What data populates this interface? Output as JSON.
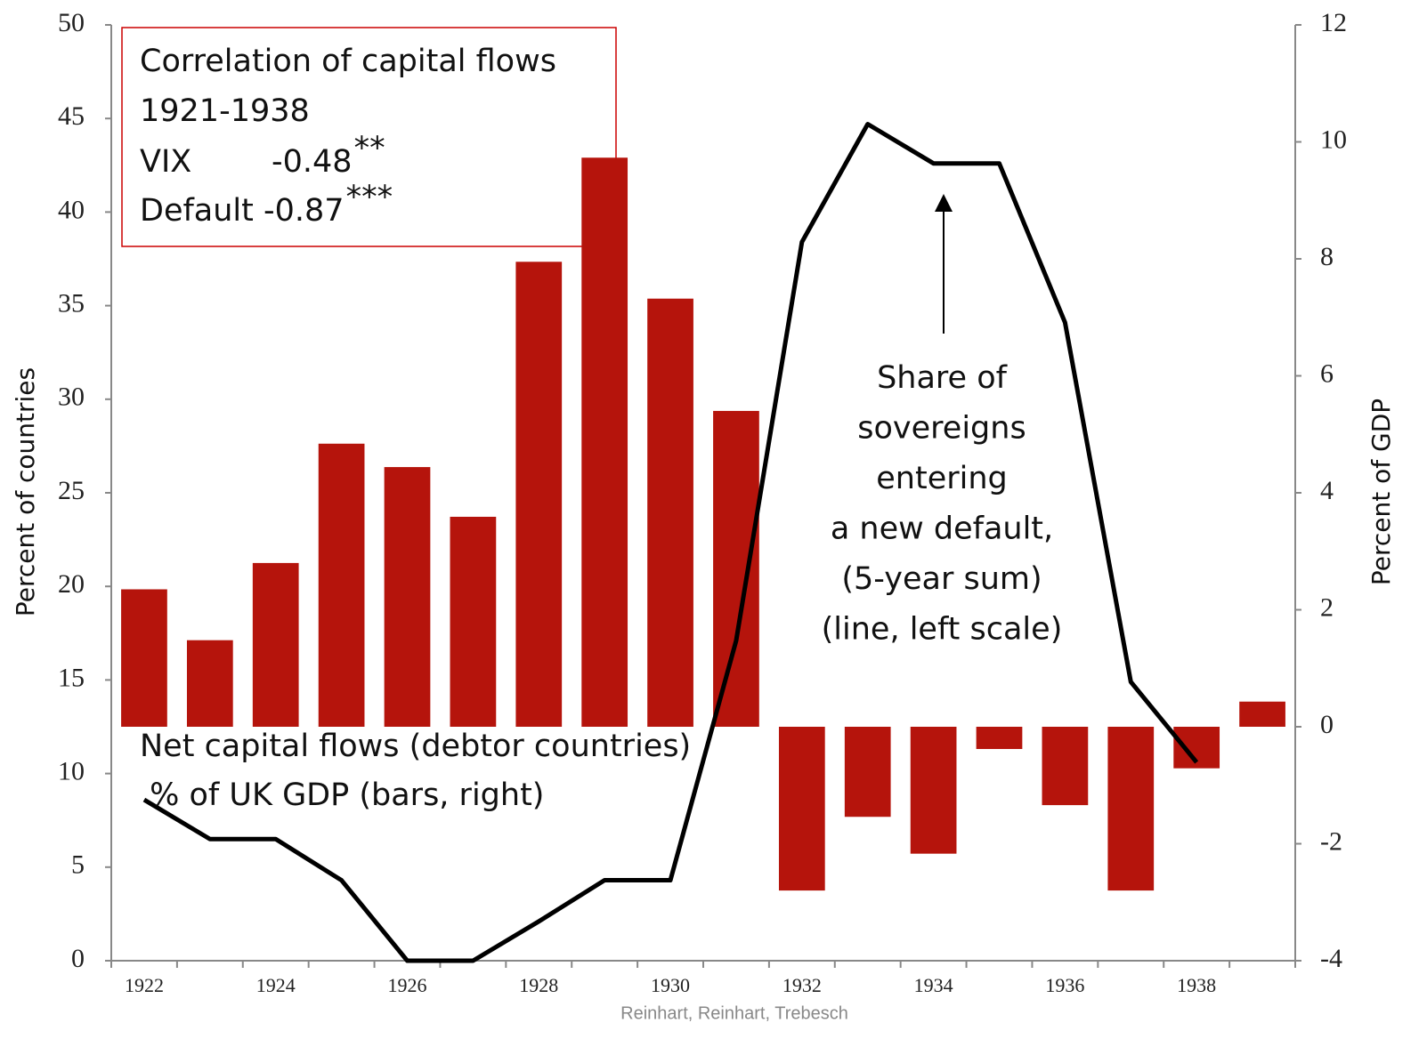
{
  "chart_data": {
    "type": "bar",
    "categories": [
      1922,
      null,
      1924,
      null,
      1926,
      null,
      1928,
      null,
      1930,
      null,
      1932,
      null,
      1934,
      null,
      1936,
      null,
      1938,
      null
    ],
    "series": [
      {
        "type": "bar",
        "axis": "y2",
        "color": "#b5140c",
        "values": [
          2.35,
          1.48,
          2.8,
          4.84,
          4.44,
          3.59,
          7.95,
          9.73,
          7.32,
          5.4,
          -2.8,
          -1.54,
          -2.17,
          -0.38,
          -1.34,
          -2.8,
          -0.71,
          0.43
        ]
      },
      {
        "type": "line",
        "color": "#000000",
        "values": [
          8.6,
          6.5,
          6.5,
          4.3,
          0,
          0,
          2.1,
          4.3,
          4.3,
          17.1,
          38.4,
          44.7,
          42.6,
          42.6,
          34.1,
          14.9,
          10.6,
          null
        ]
      }
    ],
    "ylim": [
      0,
      50
    ],
    "yticks": [
      0,
      5,
      10,
      15,
      20,
      25,
      30,
      35,
      40,
      45,
      50
    ],
    "y2lim": [
      -4,
      12
    ],
    "y2ticks": [
      -4,
      -2,
      0,
      2,
      4,
      6,
      8,
      10,
      12
    ],
    "ylabel": "Percent of countries",
    "y2label": "Percent of GDP",
    "source": "Reinhart, Reinhart, Trebesch",
    "box": {
      "lines": [
        "Correlation of capital flows",
        "1921-1938"
      ],
      "vix_label": "VIX",
      "vix_value": "-0.48",
      "vix_stars": "**",
      "default_text": "Default -0.87",
      "default_stars": "***"
    },
    "line_note": [
      "Share of",
      "sovereigns",
      "entering",
      "a new default,",
      "(5-year sum)",
      "(line, left scale)"
    ],
    "bar_note": [
      "Net capital flows (debtor countries)",
      " % of UK GDP (bars, right)"
    ]
  }
}
